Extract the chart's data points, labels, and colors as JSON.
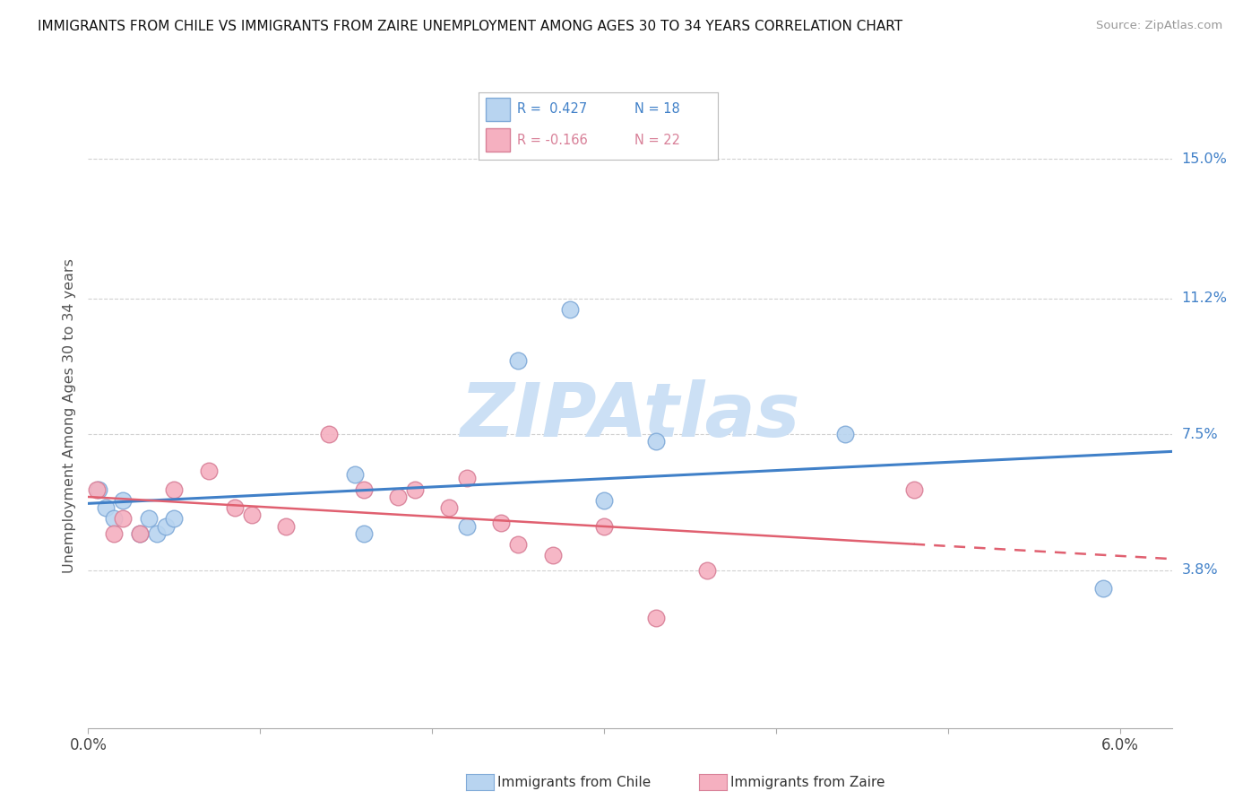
{
  "title": "IMMIGRANTS FROM CHILE VS IMMIGRANTS FROM ZAIRE UNEMPLOYMENT AMONG AGES 30 TO 34 YEARS CORRELATION CHART",
  "source": "Source: ZipAtlas.com",
  "ylabel": "Unemployment Among Ages 30 to 34 years",
  "xlim": [
    0.0,
    0.063
  ],
  "ylim": [
    -0.005,
    0.165
  ],
  "xtick_pos": [
    0.0,
    0.01,
    0.02,
    0.03,
    0.04,
    0.05,
    0.06
  ],
  "xtick_labels": [
    "0.0%",
    "",
    "",
    "",
    "",
    "",
    "6.0%"
  ],
  "ytick_vals": [
    0.038,
    0.075,
    0.112,
    0.15
  ],
  "ytick_labels": [
    "3.8%",
    "7.5%",
    "11.2%",
    "15.0%"
  ],
  "chile_color": "#b8d4f0",
  "chile_edge": "#80aad8",
  "zaire_color": "#f5b0c0",
  "zaire_edge": "#d88098",
  "chile_line_color": "#4080c8",
  "zaire_line_color": "#e06070",
  "right_label_color": "#4080c8",
  "marker_size": 180,
  "chile_R": "0.427",
  "chile_N": "18",
  "zaire_R": "-0.166",
  "zaire_N": "22",
  "chile_x": [
    0.0006,
    0.001,
    0.0015,
    0.002,
    0.003,
    0.0035,
    0.004,
    0.0045,
    0.005,
    0.0155,
    0.016,
    0.022,
    0.025,
    0.028,
    0.03,
    0.033,
    0.044,
    0.059
  ],
  "chile_y": [
    0.06,
    0.055,
    0.052,
    0.057,
    0.048,
    0.052,
    0.048,
    0.05,
    0.052,
    0.064,
    0.048,
    0.05,
    0.095,
    0.109,
    0.057,
    0.073,
    0.075,
    0.033
  ],
  "zaire_x": [
    0.0005,
    0.0015,
    0.002,
    0.003,
    0.005,
    0.007,
    0.0085,
    0.0095,
    0.0115,
    0.014,
    0.016,
    0.018,
    0.019,
    0.021,
    0.022,
    0.024,
    0.025,
    0.027,
    0.03,
    0.033,
    0.036,
    0.048
  ],
  "zaire_y": [
    0.06,
    0.048,
    0.052,
    0.048,
    0.06,
    0.065,
    0.055,
    0.053,
    0.05,
    0.075,
    0.06,
    0.058,
    0.06,
    0.055,
    0.063,
    0.051,
    0.045,
    0.042,
    0.05,
    0.025,
    0.038,
    0.06
  ]
}
